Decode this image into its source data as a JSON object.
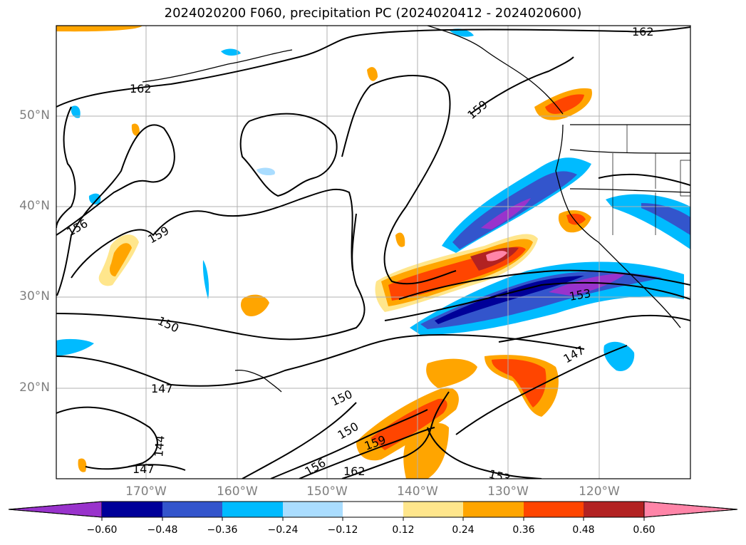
{
  "title": "2024020200 F060, precipitation PC (2024020412 - 2024020600)",
  "map": {
    "projection": "cylindrical",
    "lon_range": [
      -180,
      -110
    ],
    "lat_range": [
      10,
      60
    ],
    "lat_labels": [
      "50°N",
      "40°N",
      "30°N",
      "20°N"
    ],
    "lon_labels": [
      "170°W",
      "160°W",
      "150°W",
      "140°W",
      "130°W",
      "120°W"
    ],
    "grid": true,
    "contour_labels": [
      "162",
      "162",
      "159",
      "159",
      "156",
      "150",
      "147",
      "147",
      "144",
      "150",
      "150",
      "159",
      "156",
      "162",
      "153",
      "153",
      "147"
    ]
  },
  "colorbar": {
    "ticks": [
      "−0.60",
      "−0.48",
      "−0.36",
      "−0.24",
      "−0.12",
      "0.12",
      "0.24",
      "0.36",
      "0.48",
      "0.60"
    ],
    "colors": [
      "#9933cc",
      "#000099",
      "#3355cc",
      "#00bbff",
      "#aaddff",
      "#ffffff",
      "#ffe68c",
      "#ffa500",
      "#ff4500",
      "#b22222",
      "#ff85a8"
    ],
    "extend": "both"
  }
}
